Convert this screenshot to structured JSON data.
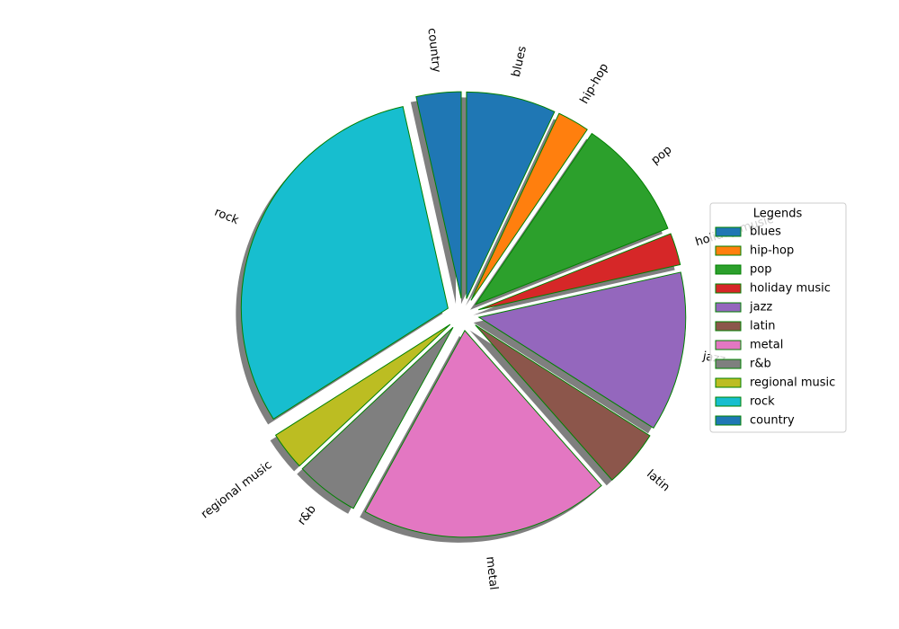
{
  "chart_data": {
    "type": "pie",
    "categories": [
      "blues",
      "hip-hop",
      "pop",
      "holiday music",
      "jazz",
      "latin",
      "metal",
      "r&b",
      "regional music",
      "rock",
      "country"
    ],
    "values": [
      7,
      2.5,
      9.5,
      2.5,
      12.5,
      4.5,
      19.5,
      5,
      3,
      30.5,
      3.5
    ],
    "colors": [
      "#1f77b4",
      "#ff7f0e",
      "#2ca02c",
      "#d62728",
      "#9467bd",
      "#8c564b",
      "#e377c2",
      "#7f7f7f",
      "#bcbd22",
      "#17becf",
      "#1f77b4"
    ],
    "edge_color": "#008000",
    "legend_title": "Legends",
    "legend": "right"
  }
}
